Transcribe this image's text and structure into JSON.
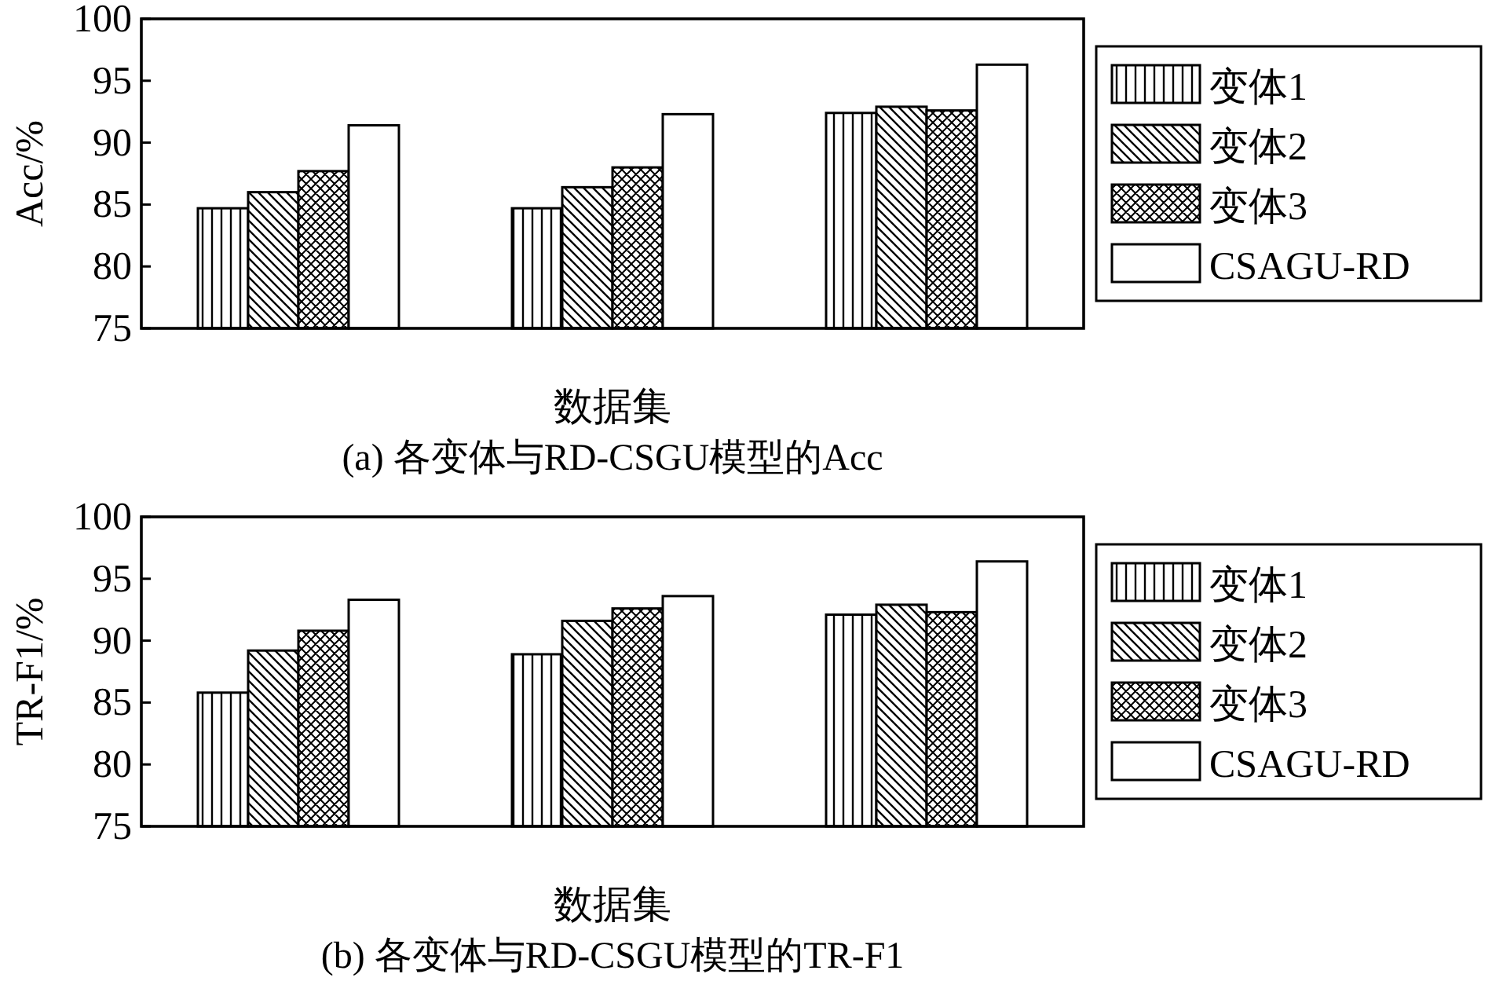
{
  "chart_data": [
    {
      "type": "bar",
      "title": "(a) 各变体与RD-CSGU模型的Acc",
      "xlabel": "数据集",
      "ylabel": "Acc/%",
      "categories": [
        null,
        null,
        null
      ],
      "ylim": [
        75,
        100
      ],
      "yticks": [
        75,
        80,
        85,
        90,
        95,
        100
      ],
      "legend": "right",
      "grid": false,
      "series": [
        {
          "name": "变体1",
          "color": "#ffffff",
          "values": [
            84.7,
            84.7,
            92.4
          ]
        },
        {
          "name": "变体2",
          "color": "#ffffff",
          "values": [
            86.0,
            86.4,
            92.9
          ]
        },
        {
          "name": "变体3",
          "color": "#ffffff",
          "values": [
            87.7,
            88.0,
            92.6
          ]
        },
        {
          "name": "CSAGU-RD",
          "color": "#ffffff",
          "values": [
            91.4,
            92.3,
            96.3
          ]
        }
      ]
    },
    {
      "type": "bar",
      "title": "(b) 各变体与RD-CSGU模型的TR-F1",
      "xlabel": "数据集",
      "ylabel": "TR-F1/%",
      "categories": [
        null,
        null,
        null
      ],
      "ylim": [
        75,
        100
      ],
      "yticks": [
        75,
        80,
        85,
        90,
        95,
        100
      ],
      "legend": "right",
      "grid": false,
      "series": [
        {
          "name": "变体1",
          "color": "#ffffff",
          "values": [
            85.8,
            88.9,
            92.1
          ]
        },
        {
          "name": "变体2",
          "color": "#ffffff",
          "values": [
            89.2,
            91.6,
            92.9
          ]
        },
        {
          "name": "变体3",
          "color": "#ffffff",
          "values": [
            90.8,
            92.6,
            92.3
          ]
        },
        {
          "name": "CSAGU-RD",
          "color": "#ffffff",
          "values": [
            93.3,
            93.6,
            96.4
          ]
        }
      ]
    }
  ]
}
